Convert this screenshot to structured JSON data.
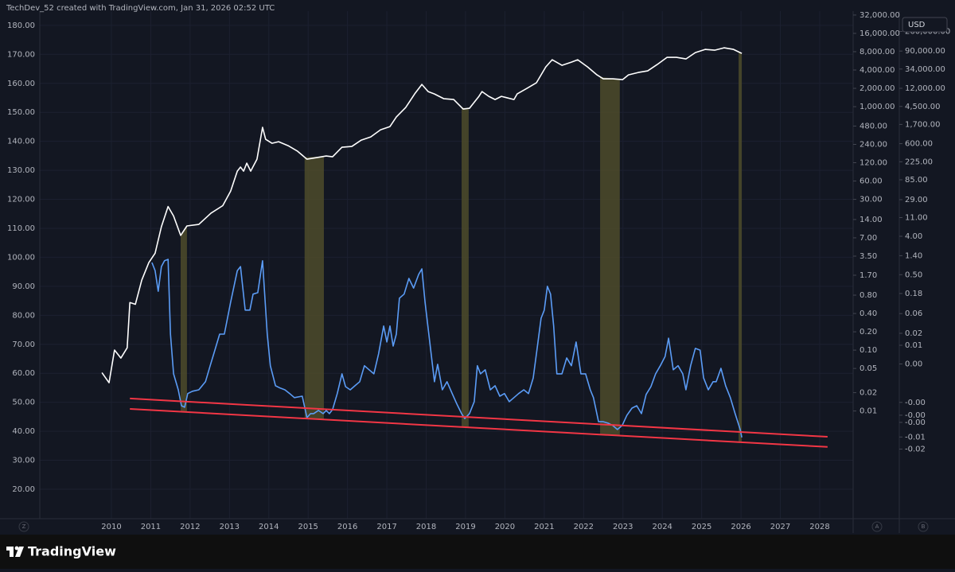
{
  "header": "TechDev_52 created with TradingView.com, Jan 31, 2026 02:52 UTC",
  "currency": "USD",
  "brand": "TradingView",
  "corner_labels": [
    "Z",
    "A",
    "B"
  ],
  "chart_data": {
    "type": "line",
    "xlim": [
      2008.18,
      2028.85
    ],
    "xticks": [
      2010,
      2011,
      2012,
      2013,
      2014,
      2015,
      2016,
      2017,
      2018,
      2019,
      2020,
      2021,
      2022,
      2023,
      2024,
      2025,
      2026,
      2027,
      2028
    ],
    "ylim": [
      9.85,
      184.9
    ],
    "yticks": [
      {
        "value": 180,
        "label": "180.00"
      },
      {
        "value": 170,
        "label": "170.00"
      },
      {
        "value": 160,
        "label": "160.00"
      },
      {
        "value": 150,
        "label": "150.00"
      },
      {
        "value": 140,
        "label": "140.00"
      },
      {
        "value": 130,
        "label": "130.00"
      },
      {
        "value": 120,
        "label": "120.00"
      },
      {
        "value": 110,
        "label": "110.00"
      },
      {
        "value": 100,
        "label": "100.00"
      },
      {
        "value": 90,
        "label": "90.00"
      },
      {
        "value": 80,
        "label": "80.00"
      },
      {
        "value": 70,
        "label": "70.00"
      },
      {
        "value": 60,
        "label": "60.00"
      },
      {
        "value": 50,
        "label": "50.00"
      },
      {
        "value": 40,
        "label": "40.00"
      },
      {
        "value": 30,
        "label": "30.00"
      },
      {
        "value": 20,
        "label": "20.00"
      }
    ],
    "y2lim": [
      0.00017,
      37100
    ],
    "y2scale": "log",
    "y2ticks": [
      {
        "value": 32000,
        "label": "32,000.00"
      },
      {
        "value": 16000,
        "label": "16,000.00"
      },
      {
        "value": 8000,
        "label": "8,000.00"
      },
      {
        "value": 4000,
        "label": "4,000.00"
      },
      {
        "value": 2000,
        "label": "2,000.00"
      },
      {
        "value": 1000,
        "label": "1,000.00"
      },
      {
        "value": 480,
        "label": "480.00"
      },
      {
        "value": 240,
        "label": "240.00"
      },
      {
        "value": 120,
        "label": "120.00"
      },
      {
        "value": 60,
        "label": "60.00"
      },
      {
        "value": 30,
        "label": "30.00"
      },
      {
        "value": 14,
        "label": "14.00"
      },
      {
        "value": 7,
        "label": "7.00"
      },
      {
        "value": 3.5,
        "label": "3.50"
      },
      {
        "value": 1.7,
        "label": "1.70"
      },
      {
        "value": 0.8,
        "label": "0.80"
      },
      {
        "value": 0.4,
        "label": "0.40"
      },
      {
        "value": 0.2,
        "label": "0.20"
      },
      {
        "value": 0.1,
        "label": "0.10"
      },
      {
        "value": 0.05,
        "label": "0.05"
      },
      {
        "value": 0.02,
        "label": "0.02"
      },
      {
        "value": 0.01,
        "label": "0.01"
      }
    ],
    "y3lim": [
      -1.08,
      780000
    ],
    "y3scale": "symlog",
    "y3linthresh": 0.001,
    "y3ticks": [
      {
        "value": 260000,
        "label": "260,000.00"
      },
      {
        "value": 90000,
        "label": "90,000.00"
      },
      {
        "value": 34000,
        "label": "34,000.00"
      },
      {
        "value": 12000,
        "label": "12,000.00"
      },
      {
        "value": 4500,
        "label": "4,500.00"
      },
      {
        "value": 1700,
        "label": "1,700.00"
      },
      {
        "value": 600,
        "label": "600.00"
      },
      {
        "value": 225,
        "label": "225.00"
      },
      {
        "value": 85,
        "label": "85.00"
      },
      {
        "value": 29,
        "label": "29.00"
      },
      {
        "value": 11,
        "label": "11.00"
      },
      {
        "value": 4,
        "label": "4.00"
      },
      {
        "value": 1.4,
        "label": "1.40"
      },
      {
        "value": 0.5,
        "label": "0.50"
      },
      {
        "value": 0.18,
        "label": "0.18"
      },
      {
        "value": 0.06,
        "label": "0.06"
      },
      {
        "value": 0.02,
        "label": "0.02"
      },
      {
        "value": 0.01,
        "label": "0.01"
      },
      {
        "value": 0.003,
        "label": "0.00"
      },
      {
        "value": -0.001,
        "label": "-0.00"
      },
      {
        "value": -0.003,
        "label": "-0.00"
      },
      {
        "value": -0.0049,
        "label": "-0.00"
      },
      {
        "value": -0.012,
        "label": "-0.01"
      },
      {
        "value": -0.024,
        "label": "-0.02"
      }
    ],
    "grid": true,
    "series": [
      {
        "color": "#ffffff",
        "axis": "y3",
        "x": [
          2009.76,
          2009.94,
          2010.08,
          2010.24,
          2010.4,
          2010.47,
          2010.61,
          2010.77,
          2010.95,
          2011.11,
          2011.27,
          2011.44,
          2011.58,
          2011.76,
          2011.92,
          2012.22,
          2012.53,
          2012.83,
          2013.03,
          2013.2,
          2013.28,
          2013.36,
          2013.44,
          2013.54,
          2013.7,
          2013.84,
          2013.92,
          2014.08,
          2014.25,
          2014.49,
          2014.73,
          2014.97,
          2015.22,
          2015.46,
          2015.62,
          2015.86,
          2016.11,
          2016.35,
          2016.59,
          2016.84,
          2017.08,
          2017.24,
          2017.48,
          2017.72,
          2017.89,
          2018.05,
          2018.21,
          2018.45,
          2018.7,
          2018.94,
          2019.1,
          2019.34,
          2019.42,
          2019.59,
          2019.75,
          2019.91,
          2020.23,
          2020.31,
          2020.56,
          2020.8,
          2021.04,
          2021.2,
          2021.45,
          2021.69,
          2021.85,
          2022.1,
          2022.34,
          2022.5,
          2022.74,
          2022.99,
          2023.14,
          2023.39,
          2023.63,
          2023.87,
          2024.12,
          2024.36,
          2024.6,
          2024.84,
          2025.09,
          2025.33,
          2025.57,
          2025.81,
          2026.02
        ],
        "values": [
          0.0015,
          0.00045,
          0.0075,
          0.0045,
          0.0086,
          0.11,
          0.1,
          0.37,
          0.96,
          1.6,
          6.7,
          20,
          12,
          4.2,
          7,
          7.6,
          14,
          21,
          46,
          136,
          169,
          136,
          209,
          136,
          259,
          1449,
          760,
          614,
          668,
          539,
          399,
          259,
          282,
          308,
          295,
          494,
          516,
          728,
          865,
          1274,
          1514,
          2535,
          4256,
          9226,
          14830,
          10070,
          8830,
          6823,
          6546,
          3900,
          4074,
          7762,
          10070,
          7762,
          6546,
          7762,
          6546,
          8830,
          11940,
          16140,
          38190,
          56230,
          41590,
          49430,
          56230,
          38190,
          24830,
          20040,
          20040,
          19190,
          24830,
          28250,
          30830,
          43450,
          63970,
          63970,
          58750,
          82980,
          98400,
          94400,
          107400,
          98400,
          79430
        ]
      },
      {
        "color": "#5b9cf6",
        "x": [
          2011.03,
          2011.11,
          2011.19,
          2011.27,
          2011.35,
          2011.44,
          2011.5,
          2011.58,
          2011.7,
          2011.78,
          2011.86,
          2011.94,
          2012.06,
          2012.22,
          2012.39,
          2012.51,
          2012.63,
          2012.75,
          2012.87,
          2013.03,
          2013.2,
          2013.28,
          2013.4,
          2013.52,
          2013.6,
          2013.72,
          2013.84,
          2013.96,
          2014.04,
          2014.17,
          2014.29,
          2014.41,
          2014.53,
          2014.65,
          2014.85,
          2014.97,
          2015.06,
          2015.14,
          2015.26,
          2015.38,
          2015.46,
          2015.54,
          2015.62,
          2015.74,
          2015.86,
          2015.95,
          2016.07,
          2016.19,
          2016.31,
          2016.43,
          2016.55,
          2016.67,
          2016.79,
          2016.92,
          2017.0,
          2017.08,
          2017.16,
          2017.24,
          2017.32,
          2017.44,
          2017.56,
          2017.68,
          2017.81,
          2017.89,
          2017.97,
          2018.09,
          2018.21,
          2018.29,
          2018.41,
          2018.53,
          2018.66,
          2018.78,
          2018.9,
          2018.98,
          2019.1,
          2019.22,
          2019.3,
          2019.38,
          2019.5,
          2019.63,
          2019.75,
          2019.87,
          2019.99,
          2020.11,
          2020.23,
          2020.35,
          2020.48,
          2020.6,
          2020.72,
          2020.84,
          2020.92,
          2021.0,
          2021.08,
          2021.16,
          2021.24,
          2021.32,
          2021.45,
          2021.57,
          2021.69,
          2021.81,
          2021.93,
          2022.05,
          2022.17,
          2022.25,
          2022.38,
          2022.5,
          2022.62,
          2022.74,
          2022.86,
          2022.98,
          2023.1,
          2023.23,
          2023.35,
          2023.47,
          2023.59,
          2023.71,
          2023.83,
          2023.95,
          2024.07,
          2024.16,
          2024.28,
          2024.4,
          2024.52,
          2024.6,
          2024.72,
          2024.84,
          2024.96,
          2025.05,
          2025.17,
          2025.29,
          2025.37,
          2025.49,
          2025.61,
          2025.73,
          2025.85,
          2025.98,
          2026.02
        ],
        "values": [
          98.2,
          95.4,
          88.3,
          96.8,
          98.8,
          99.3,
          73.5,
          59.8,
          54.3,
          48.8,
          48.3,
          53.0,
          53.8,
          54.3,
          57.1,
          62.6,
          68.0,
          73.5,
          73.5,
          84.5,
          95.4,
          96.8,
          81.8,
          81.8,
          87.3,
          87.8,
          98.8,
          73.5,
          62.6,
          55.7,
          54.9,
          54.3,
          53.0,
          51.6,
          52.1,
          44.7,
          46.1,
          46.1,
          47.2,
          46.1,
          47.2,
          46.1,
          47.5,
          53.0,
          59.8,
          55.4,
          54.3,
          55.7,
          57.1,
          62.6,
          61.2,
          59.8,
          66.7,
          76.3,
          70.8,
          76.3,
          69.4,
          73.5,
          85.9,
          87.3,
          92.7,
          89.4,
          94.1,
          96.0,
          84.5,
          70.8,
          57.1,
          63.1,
          54.3,
          57.1,
          53.0,
          49.4,
          46.1,
          44.4,
          46.1,
          50.2,
          62.6,
          59.8,
          61.2,
          54.3,
          55.7,
          52.1,
          53.0,
          50.2,
          51.6,
          53.0,
          54.3,
          53.0,
          58.4,
          70.8,
          79.0,
          81.8,
          90.0,
          87.3,
          76.3,
          59.8,
          59.8,
          65.3,
          62.6,
          70.8,
          59.8,
          59.8,
          54.3,
          51.6,
          43.3,
          43.3,
          42.8,
          42.0,
          40.6,
          42.0,
          45.5,
          48.0,
          48.8,
          46.1,
          52.7,
          55.4,
          59.8,
          62.6,
          65.8,
          72.1,
          61.2,
          62.6,
          59.8,
          54.3,
          62.6,
          68.6,
          68.0,
          58.4,
          54.3,
          57.1,
          57.1,
          61.7,
          55.7,
          51.6,
          46.1,
          40.6,
          37.9
        ]
      }
    ],
    "bands": [
      [
        2011.76,
        2011.92
      ],
      [
        2014.91,
        2015.4
      ],
      [
        2018.9,
        2019.08
      ],
      [
        2022.42,
        2022.92
      ],
      [
        2025.94,
        2026.02
      ]
    ],
    "band_color": "#4d4b2a",
    "trendlines": [
      {
        "color": "#f23645",
        "x": [
          2010.47,
          2028.2
        ],
        "values": [
          51.3,
          38.1
        ]
      },
      {
        "color": "#f23645",
        "x": [
          2010.47,
          2028.2
        ],
        "values": [
          47.7,
          34.6
        ]
      }
    ]
  }
}
